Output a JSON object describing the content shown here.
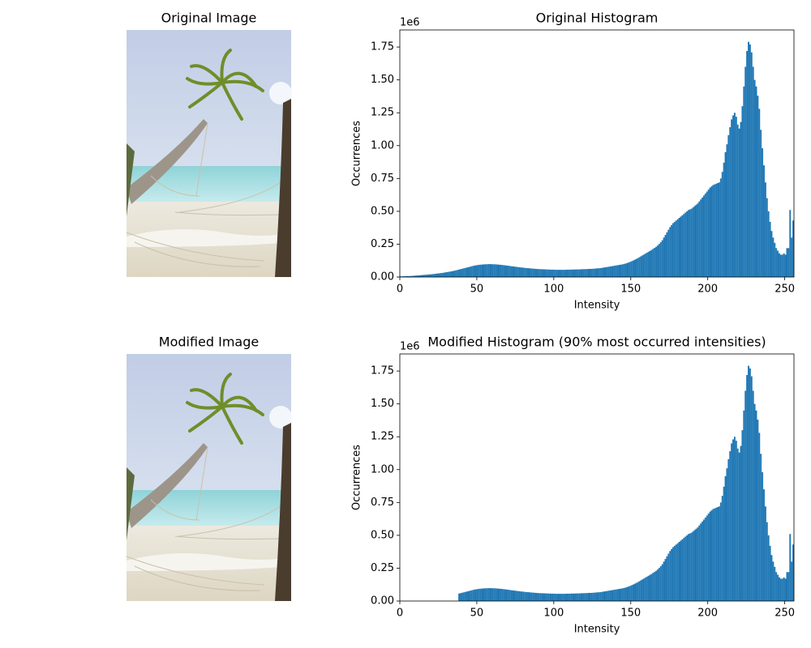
{
  "images": [
    {
      "title": "Original Image"
    },
    {
      "title": "Modified Image"
    }
  ],
  "chart_data": [
    {
      "type": "histogram",
      "title": "Original Histogram",
      "xlabel": "Intensity",
      "ylabel": "Occurrences",
      "y_offset_label": "1e6",
      "color": "#1f77b4",
      "xlim": [
        0,
        256
      ],
      "ylim": [
        0,
        1.88
      ],
      "xticks": [
        0,
        50,
        100,
        150,
        200,
        250
      ],
      "yticks": [
        {
          "value": 0,
          "label": "0.00"
        },
        0.25,
        {
          "value": 0.5,
          "label": "0.50"
        },
        0.75,
        {
          "value": 1,
          "label": "1.00"
        },
        1.25,
        {
          "value": 1.5,
          "label": "1.50"
        },
        1.75
      ],
      "bins": [
        0,
        1,
        2,
        3,
        4,
        5,
        6,
        7,
        8,
        9,
        10,
        11,
        12,
        13,
        14,
        15,
        16,
        17,
        18,
        19,
        20,
        21,
        22,
        23,
        24,
        25,
        26,
        27,
        28,
        29,
        30,
        31,
        32,
        33,
        34,
        35,
        36,
        37,
        38,
        39,
        40,
        41,
        42,
        43,
        44,
        45,
        46,
        47,
        48,
        49,
        50,
        51,
        52,
        53,
        54,
        55,
        56,
        57,
        58,
        59,
        60,
        61,
        62,
        63,
        64,
        65,
        66,
        67,
        68,
        69,
        70,
        71,
        72,
        73,
        74,
        75,
        76,
        77,
        78,
        79,
        80,
        81,
        82,
        83,
        84,
        85,
        86,
        87,
        88,
        89,
        90,
        91,
        92,
        93,
        94,
        95,
        96,
        97,
        98,
        99,
        100,
        101,
        102,
        103,
        104,
        105,
        106,
        107,
        108,
        109,
        110,
        111,
        112,
        113,
        114,
        115,
        116,
        117,
        118,
        119,
        120,
        121,
        122,
        123,
        124,
        125,
        126,
        127,
        128,
        129,
        130,
        131,
        132,
        133,
        134,
        135,
        136,
        137,
        138,
        139,
        140,
        141,
        142,
        143,
        144,
        145,
        146,
        147,
        148,
        149,
        150,
        151,
        152,
        153,
        154,
        155,
        156,
        157,
        158,
        159,
        160,
        161,
        162,
        163,
        164,
        165,
        166,
        167,
        168,
        169,
        170,
        171,
        172,
        173,
        174,
        175,
        176,
        177,
        178,
        179,
        180,
        181,
        182,
        183,
        184,
        185,
        186,
        187,
        188,
        189,
        190,
        191,
        192,
        193,
        194,
        195,
        196,
        197,
        198,
        199,
        200,
        201,
        202,
        203,
        204,
        205,
        206,
        207,
        208,
        209,
        210,
        211,
        212,
        213,
        214,
        215,
        216,
        217,
        218,
        219,
        220,
        221,
        222,
        223,
        224,
        225,
        226,
        227,
        228,
        229,
        230,
        231,
        232,
        233,
        234,
        235,
        236,
        237,
        238,
        239,
        240,
        241,
        242,
        243,
        244,
        245,
        246,
        247,
        248,
        249,
        250,
        251,
        252,
        253,
        254,
        255,
        256
      ],
      "values": [
        0.005,
        0.005,
        0.006,
        0.006,
        0.007,
        0.007,
        0.008,
        0.008,
        0.009,
        0.01,
        0.011,
        0.012,
        0.013,
        0.014,
        0.015,
        0.016,
        0.017,
        0.018,
        0.019,
        0.02,
        0.021,
        0.022,
        0.024,
        0.025,
        0.027,
        0.028,
        0.03,
        0.031,
        0.033,
        0.035,
        0.037,
        0.039,
        0.041,
        0.043,
        0.046,
        0.048,
        0.051,
        0.054,
        0.057,
        0.06,
        0.063,
        0.066,
        0.069,
        0.072,
        0.075,
        0.078,
        0.081,
        0.084,
        0.087,
        0.089,
        0.091,
        0.093,
        0.094,
        0.095,
        0.096,
        0.097,
        0.097,
        0.098,
        0.098,
        0.098,
        0.097,
        0.097,
        0.096,
        0.095,
        0.094,
        0.093,
        0.092,
        0.09,
        0.089,
        0.087,
        0.086,
        0.084,
        0.082,
        0.081,
        0.079,
        0.078,
        0.076,
        0.075,
        0.073,
        0.072,
        0.071,
        0.069,
        0.068,
        0.067,
        0.066,
        0.065,
        0.064,
        0.063,
        0.062,
        0.061,
        0.06,
        0.06,
        0.059,
        0.059,
        0.058,
        0.058,
        0.057,
        0.057,
        0.056,
        0.056,
        0.056,
        0.055,
        0.055,
        0.055,
        0.055,
        0.055,
        0.055,
        0.055,
        0.056,
        0.056,
        0.056,
        0.057,
        0.057,
        0.057,
        0.058,
        0.058,
        0.058,
        0.059,
        0.059,
        0.06,
        0.06,
        0.061,
        0.061,
        0.062,
        0.062,
        0.063,
        0.064,
        0.065,
        0.066,
        0.067,
        0.068,
        0.07,
        0.072,
        0.074,
        0.076,
        0.078,
        0.08,
        0.082,
        0.084,
        0.086,
        0.088,
        0.09,
        0.092,
        0.094,
        0.096,
        0.099,
        0.102,
        0.106,
        0.11,
        0.115,
        0.12,
        0.125,
        0.131,
        0.137,
        0.143,
        0.15,
        0.157,
        0.164,
        0.171,
        0.178,
        0.185,
        0.192,
        0.199,
        0.206,
        0.214,
        0.222,
        0.23,
        0.24,
        0.252,
        0.265,
        0.28,
        0.3,
        0.32,
        0.34,
        0.36,
        0.38,
        0.395,
        0.41,
        0.42,
        0.43,
        0.44,
        0.45,
        0.46,
        0.47,
        0.48,
        0.49,
        0.5,
        0.51,
        0.515,
        0.52,
        0.53,
        0.54,
        0.55,
        0.56,
        0.575,
        0.59,
        0.605,
        0.62,
        0.635,
        0.65,
        0.665,
        0.68,
        0.69,
        0.7,
        0.705,
        0.71,
        0.715,
        0.72,
        0.75,
        0.8,
        0.87,
        0.95,
        1.01,
        1.08,
        1.14,
        1.2,
        1.23,
        1.25,
        1.22,
        1.16,
        1.13,
        1.18,
        1.3,
        1.45,
        1.6,
        1.72,
        1.79,
        1.77,
        1.71,
        1.6,
        1.5,
        1.45,
        1.38,
        1.28,
        1.12,
        0.98,
        0.85,
        0.72,
        0.6,
        0.5,
        0.42,
        0.35,
        0.3,
        0.26,
        0.22,
        0.2,
        0.18,
        0.17,
        0.17,
        0.18,
        0.17,
        0.22,
        0.22,
        0.51,
        0.3,
        0.43
      ]
    },
    {
      "type": "histogram",
      "title": "Modified Histogram (90% most occurred intensities)",
      "xlabel": "Intensity",
      "ylabel": "Occurrences",
      "y_offset_label": "1e6",
      "color": "#1f77b4",
      "xlim": [
        0,
        256
      ],
      "ylim": [
        0,
        1.88
      ],
      "xticks": [
        0,
        50,
        100,
        150,
        200,
        250
      ],
      "yticks": [
        {
          "value": 0,
          "label": "0.00"
        },
        0.25,
        {
          "value": 0.5,
          "label": "0.50"
        },
        0.75,
        {
          "value": 1,
          "label": "1.00"
        },
        1.25,
        {
          "value": 1.5,
          "label": "1.50"
        },
        1.75
      ],
      "bins": [
        0,
        1,
        2,
        3,
        4,
        5,
        6,
        7,
        8,
        9,
        10,
        11,
        12,
        13,
        14,
        15,
        16,
        17,
        18,
        19,
        20,
        21,
        22,
        23,
        24,
        25,
        26,
        27,
        28,
        29,
        30,
        31,
        32,
        33,
        34,
        35,
        36,
        37,
        38,
        39,
        40,
        41,
        42,
        43,
        44,
        45,
        46,
        47,
        48,
        49,
        50,
        51,
        52,
        53,
        54,
        55,
        56,
        57,
        58,
        59,
        60,
        61,
        62,
        63,
        64,
        65,
        66,
        67,
        68,
        69,
        70,
        71,
        72,
        73,
        74,
        75,
        76,
        77,
        78,
        79,
        80,
        81,
        82,
        83,
        84,
        85,
        86,
        87,
        88,
        89,
        90,
        91,
        92,
        93,
        94,
        95,
        96,
        97,
        98,
        99,
        100,
        101,
        102,
        103,
        104,
        105,
        106,
        107,
        108,
        109,
        110,
        111,
        112,
        113,
        114,
        115,
        116,
        117,
        118,
        119,
        120,
        121,
        122,
        123,
        124,
        125,
        126,
        127,
        128,
        129,
        130,
        131,
        132,
        133,
        134,
        135,
        136,
        137,
        138,
        139,
        140,
        141,
        142,
        143,
        144,
        145,
        146,
        147,
        148,
        149,
        150,
        151,
        152,
        153,
        154,
        155,
        156,
        157,
        158,
        159,
        160,
        161,
        162,
        163,
        164,
        165,
        166,
        167,
        168,
        169,
        170,
        171,
        172,
        173,
        174,
        175,
        176,
        177,
        178,
        179,
        180,
        181,
        182,
        183,
        184,
        185,
        186,
        187,
        188,
        189,
        190,
        191,
        192,
        193,
        194,
        195,
        196,
        197,
        198,
        199,
        200,
        201,
        202,
        203,
        204,
        205,
        206,
        207,
        208,
        209,
        210,
        211,
        212,
        213,
        214,
        215,
        216,
        217,
        218,
        219,
        220,
        221,
        222,
        223,
        224,
        225,
        226,
        227,
        228,
        229,
        230,
        231,
        232,
        233,
        234,
        235,
        236,
        237,
        238,
        239,
        240,
        241,
        242,
        243,
        244,
        245,
        246,
        247,
        248,
        249,
        250,
        251,
        252,
        253,
        254,
        255,
        256
      ],
      "values": [
        0,
        0,
        0,
        0,
        0,
        0,
        0,
        0,
        0,
        0,
        0,
        0,
        0,
        0,
        0,
        0,
        0,
        0,
        0,
        0,
        0,
        0,
        0,
        0,
        0,
        0,
        0,
        0,
        0,
        0,
        0,
        0,
        0,
        0,
        0,
        0,
        0,
        0,
        0.057,
        0.06,
        0.063,
        0.066,
        0.069,
        0.072,
        0.075,
        0.078,
        0.081,
        0.084,
        0.087,
        0.089,
        0.091,
        0.093,
        0.094,
        0.095,
        0.096,
        0.097,
        0.097,
        0.098,
        0.098,
        0.098,
        0.097,
        0.097,
        0.096,
        0.095,
        0.094,
        0.093,
        0.092,
        0.09,
        0.089,
        0.087,
        0.086,
        0.084,
        0.082,
        0.081,
        0.079,
        0.078,
        0.076,
        0.075,
        0.073,
        0.072,
        0.071,
        0.069,
        0.068,
        0.067,
        0.066,
        0.065,
        0.064,
        0.063,
        0.062,
        0.061,
        0.06,
        0.06,
        0.059,
        0.059,
        0.058,
        0.058,
        0.057,
        0.057,
        0.056,
        0.056,
        0.056,
        0.055,
        0.055,
        0.055,
        0.055,
        0.055,
        0.055,
        0.055,
        0.056,
        0.056,
        0.056,
        0.057,
        0.057,
        0.057,
        0.058,
        0.058,
        0.058,
        0.059,
        0.059,
        0.06,
        0.06,
        0.061,
        0.061,
        0.062,
        0.062,
        0.063,
        0.064,
        0.065,
        0.066,
        0.067,
        0.068,
        0.07,
        0.072,
        0.074,
        0.076,
        0.078,
        0.08,
        0.082,
        0.084,
        0.086,
        0.088,
        0.09,
        0.092,
        0.094,
        0.096,
        0.099,
        0.102,
        0.106,
        0.11,
        0.115,
        0.12,
        0.125,
        0.131,
        0.137,
        0.143,
        0.15,
        0.157,
        0.164,
        0.171,
        0.178,
        0.185,
        0.192,
        0.199,
        0.206,
        0.214,
        0.222,
        0.23,
        0.24,
        0.252,
        0.265,
        0.28,
        0.3,
        0.32,
        0.34,
        0.36,
        0.38,
        0.395,
        0.41,
        0.42,
        0.43,
        0.44,
        0.45,
        0.46,
        0.47,
        0.48,
        0.49,
        0.5,
        0.51,
        0.515,
        0.52,
        0.53,
        0.54,
        0.55,
        0.56,
        0.575,
        0.59,
        0.605,
        0.62,
        0.635,
        0.65,
        0.665,
        0.68,
        0.69,
        0.7,
        0.705,
        0.71,
        0.715,
        0.72,
        0.75,
        0.8,
        0.87,
        0.95,
        1.01,
        1.08,
        1.14,
        1.2,
        1.23,
        1.25,
        1.22,
        1.16,
        1.13,
        1.18,
        1.3,
        1.45,
        1.6,
        1.72,
        1.79,
        1.77,
        1.71,
        1.6,
        1.5,
        1.45,
        1.38,
        1.28,
        1.12,
        0.98,
        0.85,
        0.72,
        0.6,
        0.5,
        0.42,
        0.35,
        0.3,
        0.26,
        0.22,
        0.2,
        0.18,
        0.17,
        0.17,
        0.18,
        0.17,
        0.22,
        0.22,
        0.51,
        0.3,
        0.43
      ]
    }
  ]
}
